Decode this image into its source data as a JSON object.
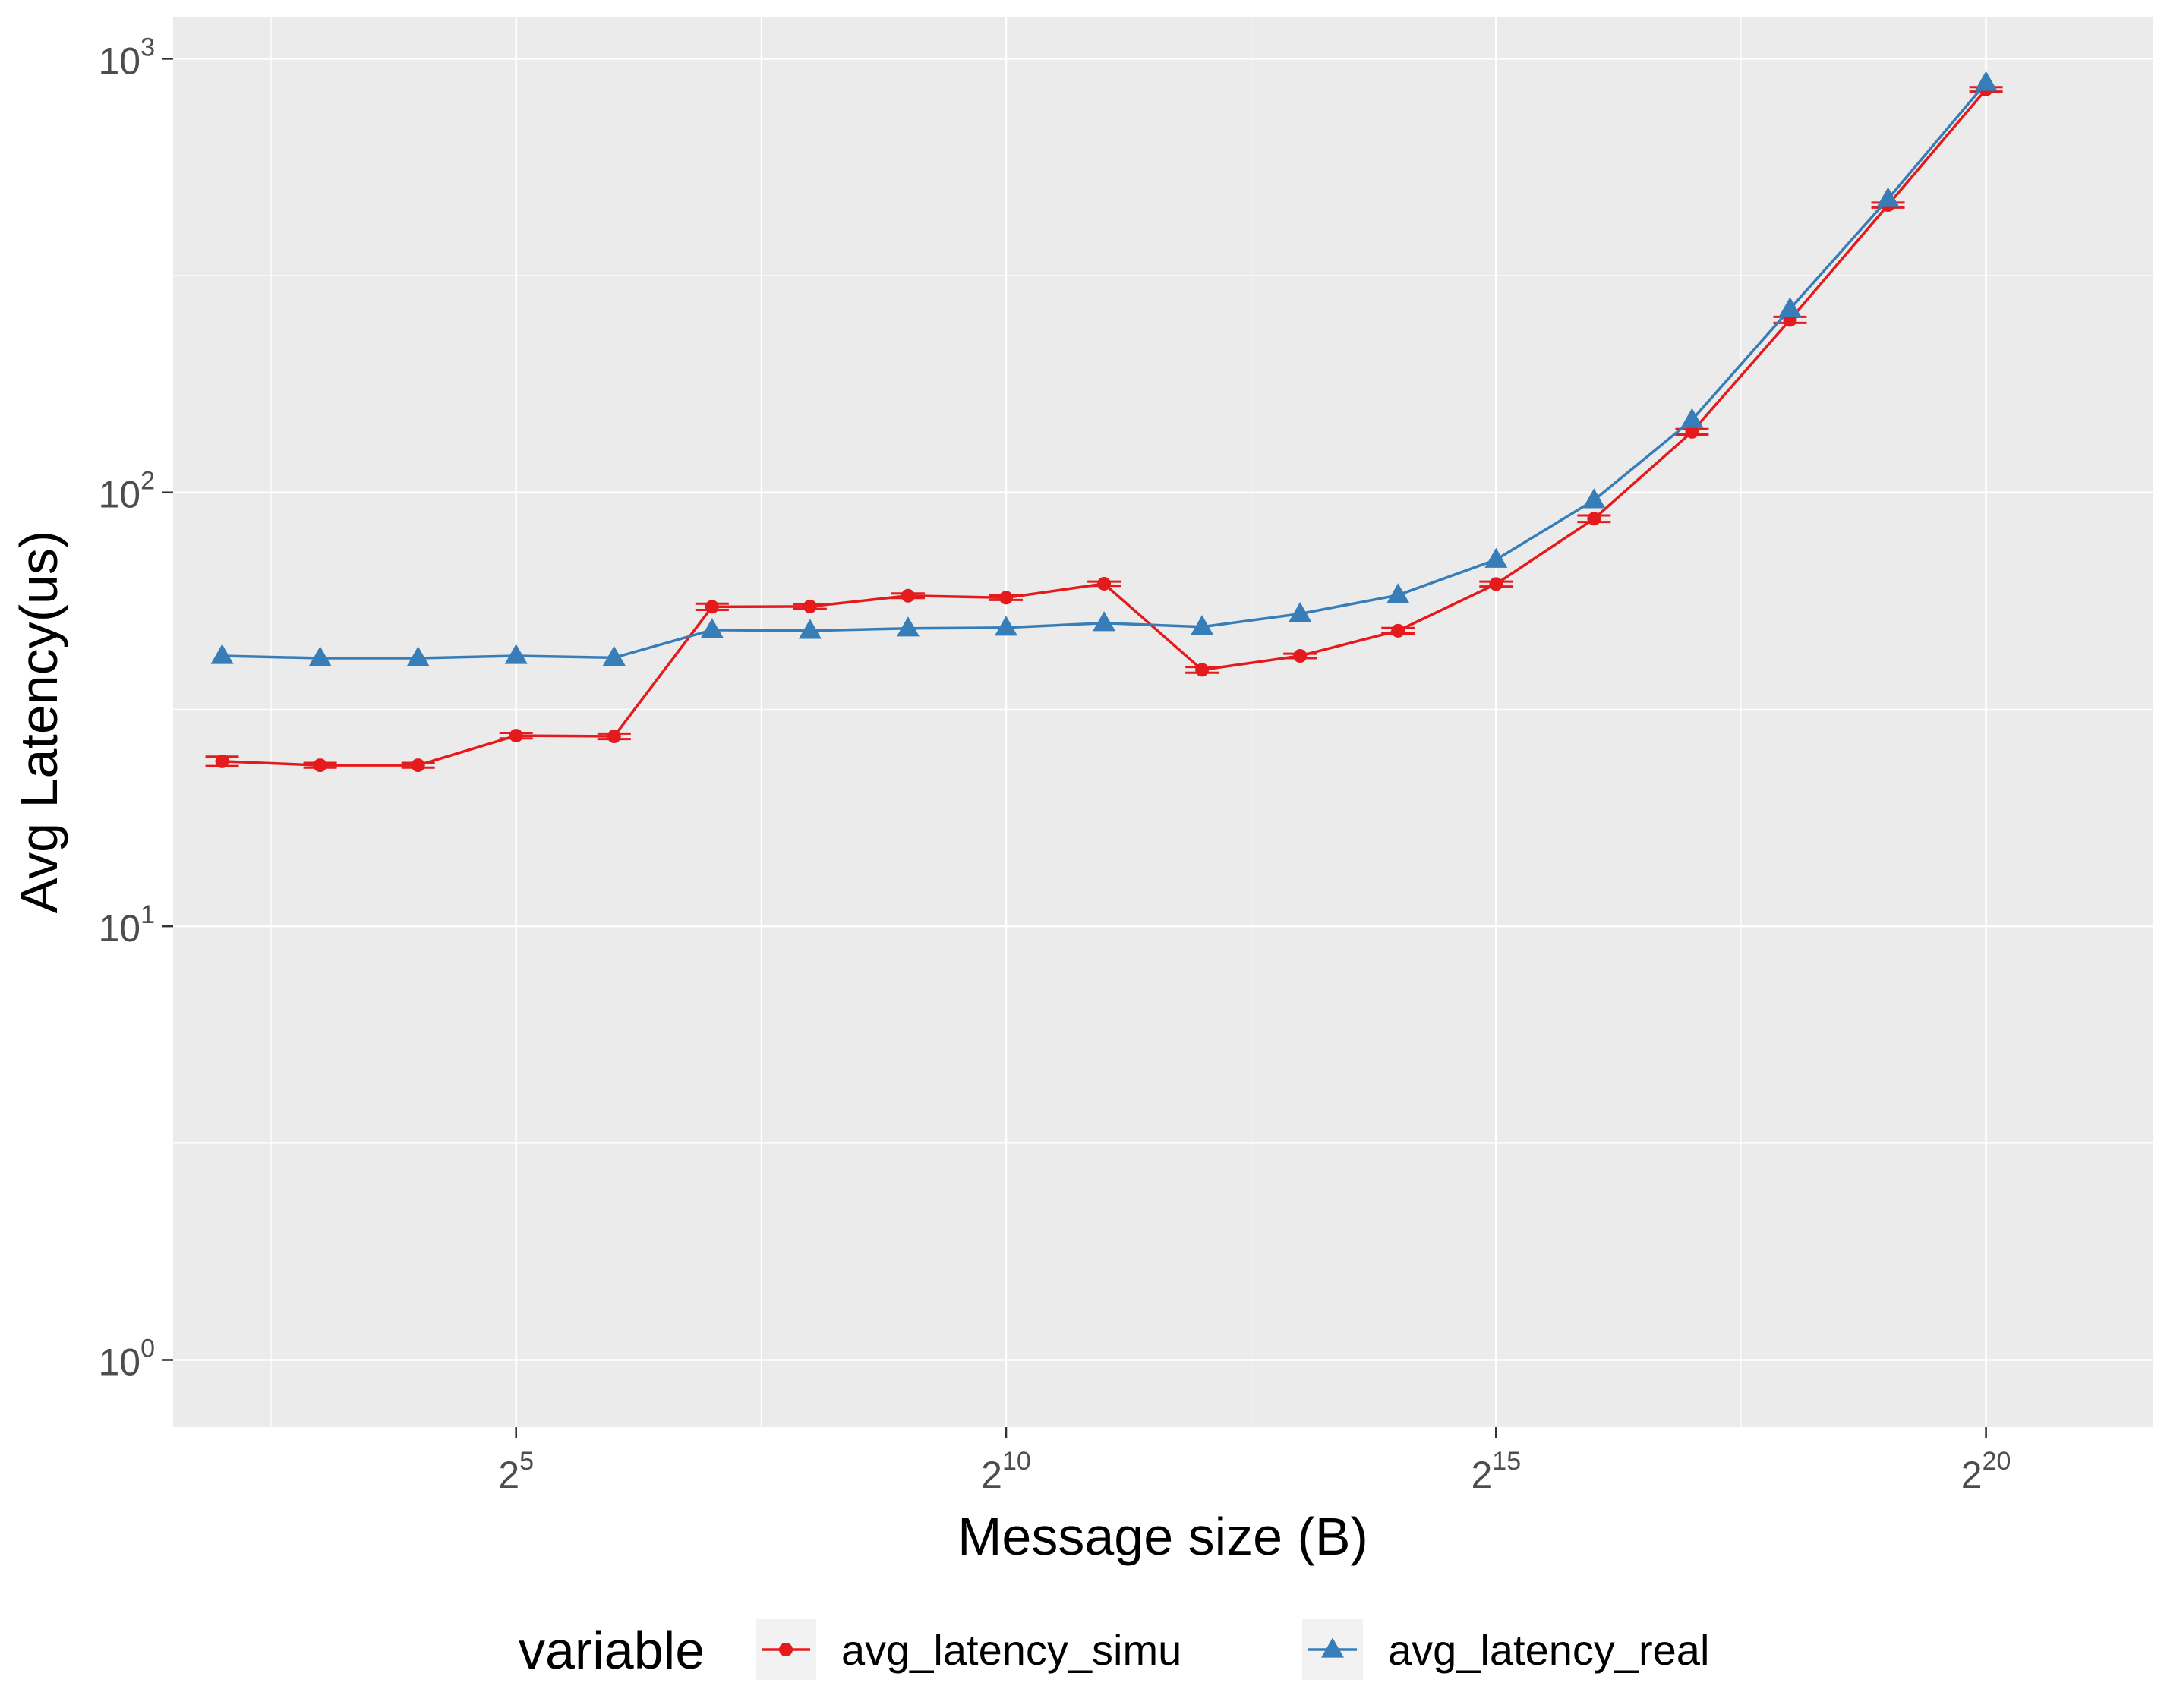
{
  "chart_data": {
    "type": "line",
    "xlabel": "Message size (B)",
    "ylabel": "Avg Latency(us)",
    "x_scale": "log2",
    "y_scale": "log10",
    "xlim_exponent": [
      1.5,
      21.7
    ],
    "ylim": [
      0.7,
      1250
    ],
    "x_ticks": [
      {
        "base": "2",
        "exp": "5",
        "value": 32
      },
      {
        "base": "2",
        "exp": "10",
        "value": 1024
      },
      {
        "base": "2",
        "exp": "15",
        "value": 32768
      },
      {
        "base": "2",
        "exp": "20",
        "value": 1048576
      }
    ],
    "y_ticks": [
      {
        "base": "10",
        "exp": "0",
        "value": 1
      },
      {
        "base": "10",
        "exp": "1",
        "value": 10
      },
      {
        "base": "10",
        "exp": "2",
        "value": 100
      },
      {
        "base": "10",
        "exp": "3",
        "value": 1000
      }
    ],
    "x": [
      4,
      8,
      16,
      32,
      64,
      128,
      256,
      512,
      1024,
      2048,
      4096,
      8192,
      16384,
      32768,
      65536,
      131072,
      262144,
      524288,
      1048576
    ],
    "series": [
      {
        "name": "avg_latency_simu",
        "color": "#e41a1c",
        "marker": "circle",
        "values": [
          24.0,
          23.5,
          23.5,
          27.5,
          27.4,
          54.5,
          54.6,
          57.8,
          57.2,
          61.6,
          39.0,
          42.0,
          48.0,
          61.5,
          87.0,
          138.0,
          250.0,
          460.0,
          850.0
        ],
        "error": [
          0.6,
          0.3,
          0.3,
          0.4,
          0.4,
          0.9,
          0.7,
          0.7,
          0.7,
          0.7,
          0.6,
          0.5,
          0.7,
          0.8,
          1.5,
          2.0,
          4.0,
          6.0,
          10.0
        ]
      },
      {
        "name": "avg_latency_real",
        "color": "#377eb8",
        "marker": "triangle",
        "values": [
          42.0,
          41.5,
          41.5,
          42.0,
          41.6,
          48.2,
          48.0,
          48.6,
          48.8,
          50.0,
          49.0,
          52.5,
          58.0,
          70.0,
          96.0,
          147.0,
          265.0,
          475.0,
          880.0
        ]
      }
    ],
    "legend": {
      "title": "variable",
      "position": "bottom"
    },
    "grid": true,
    "colors": {
      "panel_background": "#ebebeb",
      "grid_line": "#ffffff"
    }
  }
}
